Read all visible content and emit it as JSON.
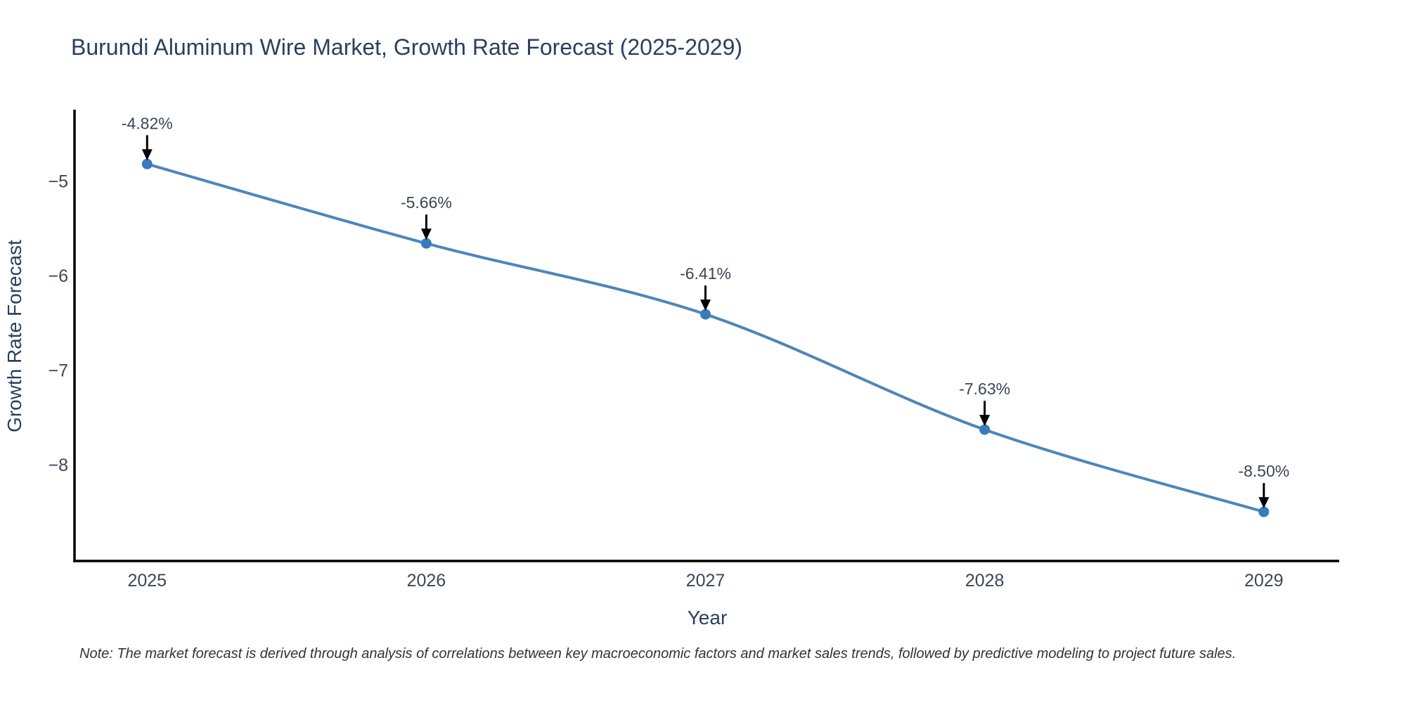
{
  "title": "Burundi Aluminum Wire Market, Growth Rate Forecast (2025-2029)",
  "note": "Note: The market forecast is derived through analysis of correlations between key macroeconomic factors and market sales trends, followed by predictive modeling to project future sales.",
  "chart_data": {
    "type": "line",
    "title": "Burundi Aluminum Wire Market, Growth Rate Forecast (2025-2029)",
    "xlabel": "Year",
    "ylabel": "Growth Rate Forecast",
    "x": [
      2025,
      2026,
      2027,
      2028,
      2029
    ],
    "x_tick_labels": [
      "2025",
      "2026",
      "2027",
      "2028",
      "2029"
    ],
    "series": [
      {
        "name": "Growth Rate Forecast",
        "values": [
          -4.82,
          -5.66,
          -6.41,
          -7.63,
          -8.5
        ],
        "point_labels": [
          "-4.82%",
          "-5.66%",
          "-6.41%",
          "-7.63%",
          "-8.50%"
        ]
      }
    ],
    "x_range": [
      2024.74,
      2029.27
    ],
    "y_range": [
      -9.02,
      -4.26
    ],
    "y_ticks": [
      -5,
      -6,
      -7,
      -8
    ],
    "y_tick_labels": [
      "−5",
      "−6",
      "−7",
      "−8"
    ],
    "grid": false,
    "legend": "none",
    "line_shape": "spline",
    "annotation_arrows": true,
    "colors": {
      "line": "#4e86b8",
      "marker": "#3a7bc0",
      "axis_line": "#000000",
      "title_text": "#2a3f5f",
      "tick_text": "#3b4757",
      "annotation_text": "#3a4554",
      "arrow": "#000000",
      "note_text": "#333333",
      "background": "#ffffff"
    }
  }
}
